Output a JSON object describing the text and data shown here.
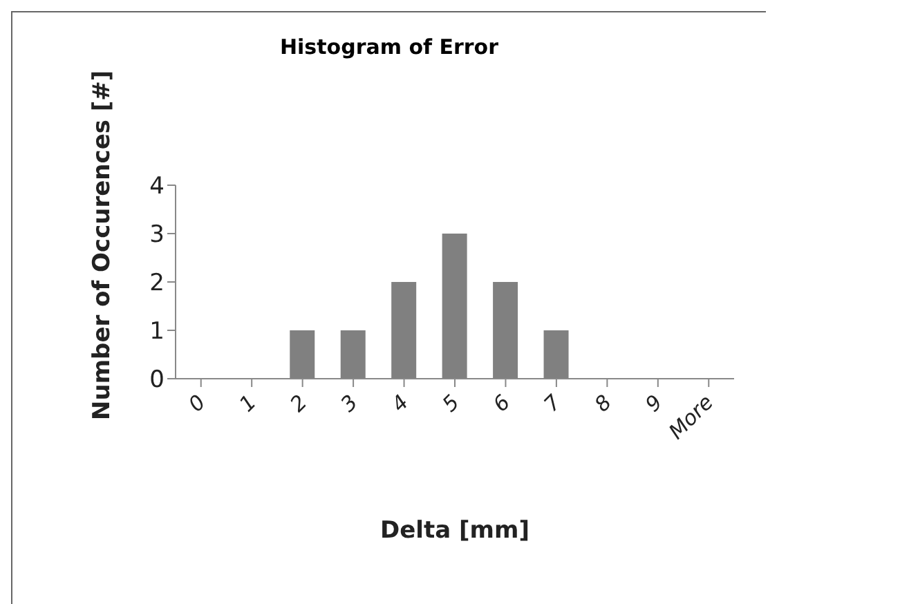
{
  "chart_data": {
    "type": "bar",
    "title": "Histogram of Error",
    "xlabel": "Delta [mm]",
    "ylabel": "Number of Occurences [#]",
    "categories": [
      "0",
      "1",
      "2",
      "3",
      "4",
      "5",
      "6",
      "7",
      "8",
      "9",
      "More"
    ],
    "values": [
      0,
      0,
      1,
      1,
      2,
      3,
      2,
      1,
      0,
      0,
      0
    ],
    "color": "#808080",
    "ylim": [
      0,
      4
    ],
    "yticks": [
      0,
      1,
      2,
      3,
      4
    ],
    "grid": false,
    "legend": false
  }
}
